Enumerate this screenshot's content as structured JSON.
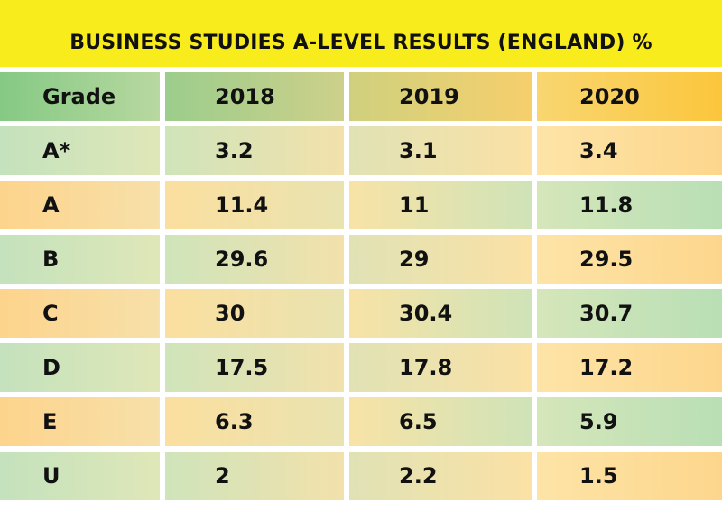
{
  "title": "BUSINESS STUDIES A-LEVEL RESULTS (ENGLAND) %",
  "header": {
    "grade": "Grade",
    "y2018": "2018",
    "y2019": "2019",
    "y2020": "2020"
  },
  "rows": [
    {
      "grade": "A*",
      "v2018": "3.2",
      "v2019": "3.1",
      "v2020": "3.4"
    },
    {
      "grade": "A",
      "v2018": "11.4",
      "v2019": "11",
      "v2020": "11.8"
    },
    {
      "grade": "B",
      "v2018": "29.6",
      "v2019": "29",
      "v2020": "29.5"
    },
    {
      "grade": "C",
      "v2018": "30",
      "v2019": "30.4",
      "v2020": "30.7"
    },
    {
      "grade": "D",
      "v2018": "17.5",
      "v2019": "17.8",
      "v2020": "17.2"
    },
    {
      "grade": "E",
      "v2018": "6.3",
      "v2019": "6.5",
      "v2020": "5.9"
    },
    {
      "grade": "U",
      "v2018": "2",
      "v2019": "2.2",
      "v2020": "1.5"
    }
  ],
  "chart_data": {
    "type": "table",
    "title": "BUSINESS STUDIES A-LEVEL RESULTS (ENGLAND) %",
    "columns": [
      "Grade",
      "2018",
      "2019",
      "2020"
    ],
    "categories": [
      "A*",
      "A",
      "B",
      "C",
      "D",
      "E",
      "U"
    ],
    "series": [
      {
        "name": "2018",
        "values": [
          3.2,
          11.4,
          29.6,
          30,
          17.5,
          6.3,
          2
        ]
      },
      {
        "name": "2019",
        "values": [
          3.1,
          11,
          29,
          30.4,
          17.8,
          6.5,
          2.2
        ]
      },
      {
        "name": "2020",
        "values": [
          3.4,
          11.8,
          29.5,
          30.7,
          17.2,
          5.9,
          1.5
        ]
      }
    ]
  }
}
